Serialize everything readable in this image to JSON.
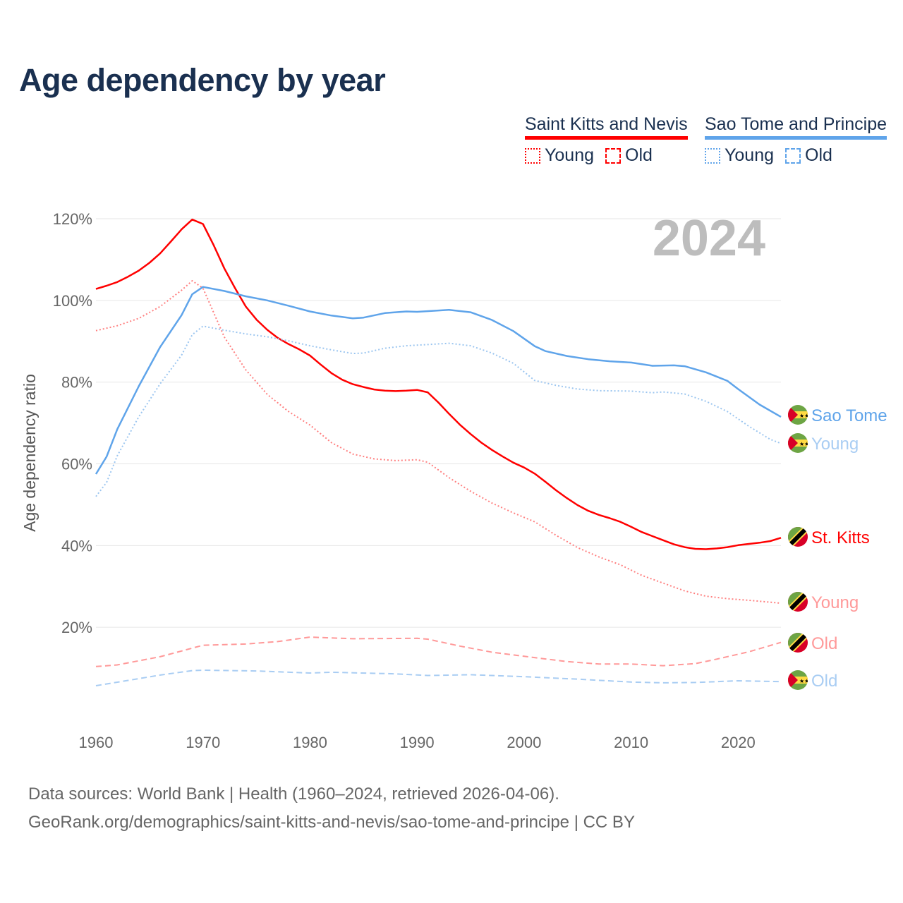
{
  "title": "Age dependency by year",
  "legend": {
    "groups": [
      {
        "name": "Saint Kitts and Nevis",
        "color": "#ff0000",
        "items": [
          "Young",
          "Old"
        ]
      },
      {
        "name": "Sao Tome and Principe",
        "color": "#5fa4ea",
        "items": [
          "Young",
          "Old"
        ]
      }
    ]
  },
  "year_watermark": "2024",
  "footer": {
    "line1": "Data sources: World Bank | Health (1960–2024, retrieved 2026-04-06).",
    "line2": "GeoRank.org/demographics/saint-kitts-and-nevis/sao-tome-and-principe | CC BY"
  },
  "chart_data": {
    "type": "line",
    "title": "Age dependency by year",
    "xlabel": "",
    "ylabel": "Age dependency ratio",
    "xlim": [
      1960,
      2024
    ],
    "ylim": [
      0,
      120
    ],
    "x_ticks": [
      "1960",
      "1970",
      "1980",
      "1990",
      "2000",
      "2010",
      "2020"
    ],
    "y_ticks": [
      "20%",
      "40%",
      "60%",
      "80%",
      "100%",
      "120%"
    ],
    "grid": true,
    "series": [
      {
        "name": "Saint Kitts and Nevis",
        "end_label": "St. Kitts",
        "flag": "kn",
        "color": "#ff0000",
        "label_color": "#ff0000",
        "style": "solid",
        "x": [
          1960,
          1961,
          1962,
          1963,
          1964,
          1965,
          1966,
          1967,
          1968,
          1969,
          1970,
          1971,
          1972,
          1973,
          1974,
          1975,
          1976,
          1977,
          1978,
          1979,
          1980,
          1981,
          1982,
          1983,
          1984,
          1985,
          1986,
          1987,
          1988,
          1989,
          1990,
          1991,
          1992,
          1993,
          1994,
          1995,
          1996,
          1997,
          1998,
          1999,
          2000,
          2001,
          2002,
          2003,
          2004,
          2005,
          2006,
          2007,
          2008,
          2009,
          2010,
          2011,
          2012,
          2013,
          2014,
          2015,
          2016,
          2017,
          2018,
          2019,
          2020,
          2021,
          2022,
          2023,
          2024
        ],
        "y": [
          102.8,
          103.6,
          104.5,
          105.8,
          107.3,
          109.2,
          111.5,
          114.4,
          117.4,
          119.8,
          118.7,
          113.5,
          107.8,
          103,
          98.5,
          95.3,
          92.8,
          90.8,
          89.3,
          88,
          86.5,
          84.3,
          82.2,
          80.6,
          79.5,
          78.8,
          78.2,
          77.9,
          77.8,
          77.9,
          78.1,
          77.5,
          75,
          72.2,
          69.6,
          67.3,
          65.2,
          63.4,
          61.8,
          60.3,
          59.1,
          57.6,
          55.6,
          53.5,
          51.6,
          49.9,
          48.5,
          47.5,
          46.7,
          45.8,
          44.6,
          43.3,
          42.3,
          41.3,
          40.3,
          39.6,
          39.2,
          39.1,
          39.3,
          39.6,
          40.1,
          40.4,
          40.7,
          41.1,
          41.9
        ]
      },
      {
        "name": "Saint Kitts and Nevis Young",
        "end_label": "Young",
        "flag": "kn",
        "color": "#ff8080",
        "label_color": "#ff9999",
        "style": "dotted",
        "x": [
          1960,
          1962,
          1964,
          1966,
          1968,
          1969,
          1970,
          1971,
          1972,
          1974,
          1976,
          1978,
          1980,
          1982,
          1984,
          1986,
          1988,
          1990,
          1991,
          1993,
          1995,
          1997,
          1999,
          2001,
          2003,
          2005,
          2007,
          2009,
          2011,
          2013,
          2015,
          2017,
          2019,
          2021,
          2024
        ],
        "y": [
          92.6,
          93.8,
          95.6,
          98.5,
          102.5,
          104.8,
          103,
          97,
          91,
          83,
          77,
          72.8,
          69.5,
          65.2,
          62.4,
          61.2,
          60.8,
          61,
          60.4,
          56.6,
          53.3,
          50.4,
          48,
          45.8,
          42.5,
          39.5,
          37.2,
          35.3,
          32.7,
          30.8,
          28.9,
          27.6,
          27,
          26.6,
          25.9
        ]
      },
      {
        "name": "Saint Kitts and Nevis Old",
        "end_label": "Old",
        "flag": "kn",
        "color": "#ff9999",
        "label_color": "#ff9999",
        "style": "dashed",
        "x": [
          1960,
          1962,
          1966,
          1968,
          1970,
          1974,
          1977,
          1980,
          1984,
          1990,
          1991,
          1994,
          1997,
          2000,
          2004,
          2007,
          2010,
          2013,
          2016,
          2018,
          2021,
          2024
        ],
        "y": [
          10.4,
          10.8,
          12.8,
          14.2,
          15.6,
          15.9,
          16.5,
          17.6,
          17.2,
          17.3,
          17.1,
          15.4,
          13.9,
          12.9,
          11.6,
          11,
          11,
          10.6,
          11.1,
          12.2,
          14,
          16.3
        ]
      },
      {
        "name": "Sao Tome and Principe",
        "end_label": "Sao Tome",
        "flag": "st",
        "color": "#5fa4ea",
        "label_color": "#5fa4ea",
        "style": "solid",
        "x": [
          1960,
          1961,
          1962,
          1964,
          1966,
          1968,
          1969,
          1970,
          1972,
          1974,
          1976,
          1978,
          1980,
          1982,
          1984,
          1985,
          1987,
          1989,
          1990,
          1993,
          1995,
          1997,
          1999,
          2001,
          2002,
          2004,
          2006,
          2008,
          2010,
          2012,
          2014,
          2015,
          2017,
          2019,
          2020,
          2022,
          2024
        ],
        "y": [
          57.5,
          61.8,
          68.5,
          79,
          88.6,
          96.4,
          101.5,
          103.3,
          102.3,
          101,
          100,
          98.7,
          97.3,
          96.3,
          95.6,
          95.8,
          96.9,
          97.3,
          97.2,
          97.7,
          97.1,
          95.2,
          92.5,
          88.8,
          87.6,
          86.4,
          85.6,
          85.1,
          84.8,
          84,
          84.1,
          83.9,
          82.4,
          80.3,
          78.3,
          74.5,
          71.5
        ]
      },
      {
        "name": "Sao Tome and Principe Young",
        "end_label": "Young",
        "flag": "st",
        "color": "#9cc6f0",
        "label_color": "#a9cdf3",
        "style": "dotted",
        "x": [
          1960,
          1961,
          1962,
          1964,
          1966,
          1968,
          1969,
          1970,
          1972,
          1974,
          1976,
          1978,
          1980,
          1982,
          1984,
          1985,
          1987,
          1989,
          1991,
          1993,
          1995,
          1997,
          1999,
          2001,
          2003,
          2005,
          2007,
          2010,
          2012,
          2013,
          2015,
          2017,
          2019,
          2021,
          2023,
          2024
        ],
        "y": [
          52,
          55.5,
          62,
          71.5,
          79.6,
          86.6,
          91.6,
          93.7,
          92.7,
          91.8,
          91.1,
          90.1,
          88.9,
          87.9,
          87,
          87.1,
          88.3,
          88.9,
          89.2,
          89.5,
          88.9,
          87.1,
          84.6,
          80.4,
          79.2,
          78.3,
          77.9,
          77.8,
          77.4,
          77.6,
          77.1,
          75.3,
          72.8,
          69.2,
          66,
          65
        ]
      },
      {
        "name": "Sao Tome and Principe Old",
        "end_label": "Old",
        "flag": "st",
        "color": "#a9cdf3",
        "label_color": "#a9cdf3",
        "style": "dashed",
        "x": [
          1960,
          1963,
          1966,
          1969,
          1970,
          1975,
          1980,
          1982,
          1988,
          1991,
          1995,
          2000,
          2005,
          2010,
          2013,
          2016,
          2020,
          2024
        ],
        "y": [
          5.7,
          7,
          8.3,
          9.4,
          9.5,
          9.3,
          8.8,
          9,
          8.6,
          8.2,
          8.4,
          7.9,
          7.3,
          6.6,
          6.4,
          6.5,
          6.9,
          6.7
        ]
      }
    ]
  }
}
